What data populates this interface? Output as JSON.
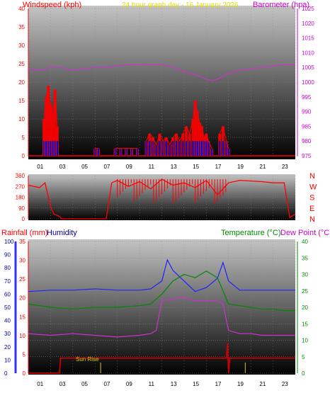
{
  "colors": {
    "background": "#ffffff",
    "wind_line": "#ff0000",
    "gust_fill": "#ff0000",
    "wind_blue": "#0000cc",
    "baro_line": "#cc33cc",
    "direction_line": "#ff0000",
    "rain_line": "#cc0000",
    "humidity_line": "#2020ff",
    "temperature_line": "#008800",
    "dewpoint_line": "#cc33cc",
    "label_red": "#ff0000",
    "label_magenta": "#cc00cc",
    "label_green": "#008800",
    "label_blue": "#000099",
    "title_yellow": "#dddd00",
    "sunrise_text": "#cccc00",
    "grid": "#888888"
  },
  "chart_data": [
    {
      "id": "wind_pressure",
      "type": "line",
      "title": "24 hour graph day - 16 January 2026",
      "left_axis_label": "Windspeed (kph)",
      "right_axis_label": "Barometer (hpa)",
      "x_ticks": [
        "01",
        "03",
        "05",
        "07",
        "09",
        "11",
        "13",
        "15",
        "17",
        "19",
        "21",
        "23"
      ],
      "ylim_left": [
        0,
        40
      ],
      "yticks_left": [
        0,
        5,
        10,
        15,
        20,
        25,
        30,
        35,
        40
      ],
      "ylim_right": [
        975,
        1025
      ],
      "yticks_right": [
        975,
        980,
        985,
        990,
        995,
        1000,
        1005,
        1010,
        1015,
        1020,
        1025
      ],
      "grid": true,
      "series": [
        {
          "axis": "right",
          "x": [
            0,
            1,
            2,
            3,
            4,
            5,
            6,
            7,
            8,
            9,
            10,
            11,
            12,
            13,
            14,
            15,
            16,
            16.5,
            17,
            18,
            19,
            20,
            21,
            22,
            23,
            24
          ],
          "y": [
            1004.5,
            1004,
            1005,
            1005,
            1004,
            1004.5,
            1005,
            1005,
            1005.5,
            1006,
            1006,
            1006,
            1006,
            1005,
            1003.5,
            1002.5,
            1001,
            1000.5,
            1001,
            1003,
            1004,
            1004.5,
            1005,
            1005.5,
            1006,
            1006
          ]
        }
      ],
      "wind_bursts": [
        {
          "x": [
            1.4,
            1.6,
            1.8,
            2.0,
            2.2,
            2.4,
            2.6
          ],
          "y": [
            10,
            16,
            19,
            14,
            12,
            18,
            8
          ]
        },
        {
          "x": [
            6.0,
            6.3
          ],
          "y": [
            2,
            2
          ]
        },
        {
          "x": [
            7.8,
            8.3,
            8.8,
            9.3,
            9.8
          ],
          "y": [
            2,
            2,
            2,
            2,
            2
          ]
        },
        {
          "x": [
            10.6,
            10.9,
            11.2,
            11.5,
            11.8,
            12.1,
            12.4,
            12.7,
            13.0,
            13.3,
            13.6,
            13.9,
            14.2,
            14.5,
            14.8,
            15.0,
            15.2,
            15.4,
            15.6,
            15.8,
            16.0,
            16.2,
            16.5
          ],
          "y": [
            4,
            6,
            5,
            3,
            6,
            4,
            5,
            3,
            5,
            6,
            4,
            6,
            8,
            6,
            10,
            15,
            12,
            9,
            8,
            5,
            6,
            4,
            2
          ]
        },
        {
          "x": [
            17.2,
            17.5,
            17.8,
            18.0
          ],
          "y": [
            6,
            8,
            4,
            2
          ]
        }
      ]
    },
    {
      "id": "wind_direction",
      "type": "line",
      "left_axis_ticks": [
        "360",
        "270",
        "180",
        "90",
        "0"
      ],
      "right_axis_letters": [
        "N",
        "W",
        "S",
        "E",
        "N"
      ],
      "ylim": [
        0,
        360
      ],
      "grid": true,
      "series": [
        {
          "x": [
            0,
            1,
            1.5,
            2,
            2.3,
            2.8,
            3,
            6,
            7,
            7.5,
            8,
            9,
            10,
            11,
            12,
            13,
            14,
            15,
            16,
            17,
            18,
            19,
            20,
            21,
            22,
            23,
            23.5,
            24
          ],
          "y": [
            280,
            260,
            300,
            100,
            40,
            20,
            0,
            0,
            0,
            300,
            320,
            270,
            310,
            250,
            330,
            280,
            300,
            260,
            320,
            200,
            300,
            320,
            315,
            310,
            300,
            300,
            10,
            40
          ]
        }
      ]
    },
    {
      "id": "temp_humidity_rain",
      "type": "line",
      "left_axis_label_rain": "Rainfall (mm)",
      "left_axis_label_humidity": "Humidity",
      "right_axis_label_temp": "Temperature (°C)",
      "right_axis_label_dew": "Dew Point (°C)",
      "x_ticks": [
        "01",
        "03",
        "05",
        "07",
        "09",
        "11",
        "13",
        "15",
        "17",
        "19",
        "21",
        "23"
      ],
      "ylim_humidity": [
        0,
        100
      ],
      "yticks_humidity": [
        0,
        10,
        20,
        30,
        40,
        50,
        60,
        70,
        80,
        90,
        100
      ],
      "ylim_rain": [
        0,
        35
      ],
      "yticks_rain": [
        0,
        5,
        10,
        15,
        20,
        25,
        30,
        35
      ],
      "ylim_temp": [
        0,
        40
      ],
      "yticks_temp": [
        0,
        5,
        10,
        15,
        20,
        25,
        30,
        35,
        40
      ],
      "sunrise_label": "Sun Rise",
      "grid": true,
      "series": [
        {
          "name": "humidity",
          "axis": "humidity",
          "x": [
            0,
            2,
            4,
            6,
            8,
            10,
            11,
            12,
            12.5,
            13,
            14,
            15,
            16,
            17,
            17.5,
            18,
            19,
            20,
            21,
            22,
            23,
            24
          ],
          "y": [
            62,
            63,
            63,
            64,
            63,
            63,
            64,
            70,
            86,
            78,
            70,
            62,
            65,
            72,
            84,
            70,
            63,
            63,
            63,
            63,
            63,
            63
          ]
        },
        {
          "name": "temperature",
          "axis": "temp",
          "x": [
            0,
            2,
            4,
            6,
            8,
            10,
            11,
            12,
            13,
            14,
            15,
            16,
            17,
            18,
            19,
            20,
            21,
            22,
            23,
            24
          ],
          "y": [
            21,
            20,
            19.5,
            20,
            20,
            20.5,
            21,
            24,
            28,
            30,
            29,
            31,
            29,
            21,
            20.5,
            20,
            19.5,
            19.5,
            19,
            19
          ]
        },
        {
          "name": "dew_point",
          "axis": "temp",
          "x": [
            0,
            2,
            4,
            6,
            8,
            10,
            11,
            11.5,
            12,
            13,
            14,
            15,
            16,
            17,
            17.5,
            18,
            19,
            20,
            21,
            22,
            23,
            24
          ],
          "y": [
            12,
            11.5,
            12,
            11.5,
            11,
            11.5,
            12,
            13,
            22,
            22.5,
            23,
            22,
            22,
            22,
            21,
            13,
            12,
            12,
            11.5,
            11.5,
            11.5,
            11.5
          ]
        },
        {
          "name": "rainfall",
          "axis": "rain",
          "x": [
            0,
            2.8,
            2.9,
            17.8,
            17.9,
            18.0,
            18.1,
            24
          ],
          "y": [
            0,
            0,
            4,
            4,
            8,
            0,
            4,
            4
          ]
        }
      ],
      "sunrise_marker_x": 6.5,
      "sunset_marker_x": 19.5
    }
  ]
}
